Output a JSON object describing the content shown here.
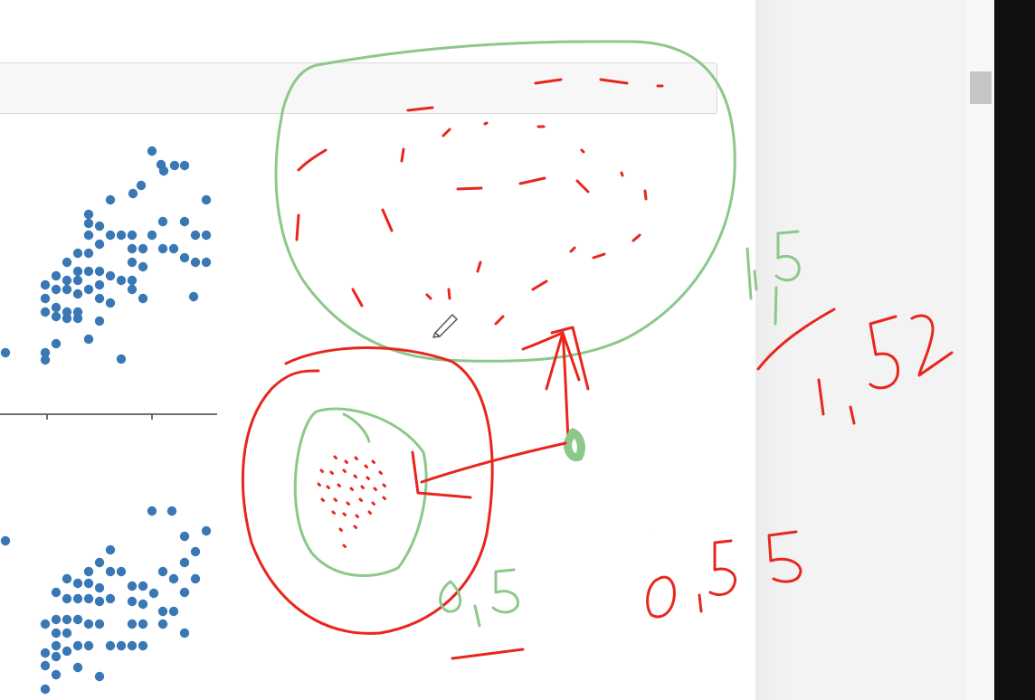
{
  "screen": {
    "background": "#ffffff",
    "side_panel_color": "#f3f3f3",
    "scrollbar_thumb_color": "#c6c6c6",
    "right_edge_color": "#111111"
  },
  "plot_style": {
    "point_color": "#3a78b5",
    "axis_color": "#444444"
  },
  "annotations": {
    "ink_red": "#e8261d",
    "ink_green": "#8cc88a",
    "green_fraction_numerator": "1,5",
    "green_fraction_denominator": "1",
    "red_result": "1,52",
    "small_label": "0,5",
    "lower_label": "0,55"
  }
}
